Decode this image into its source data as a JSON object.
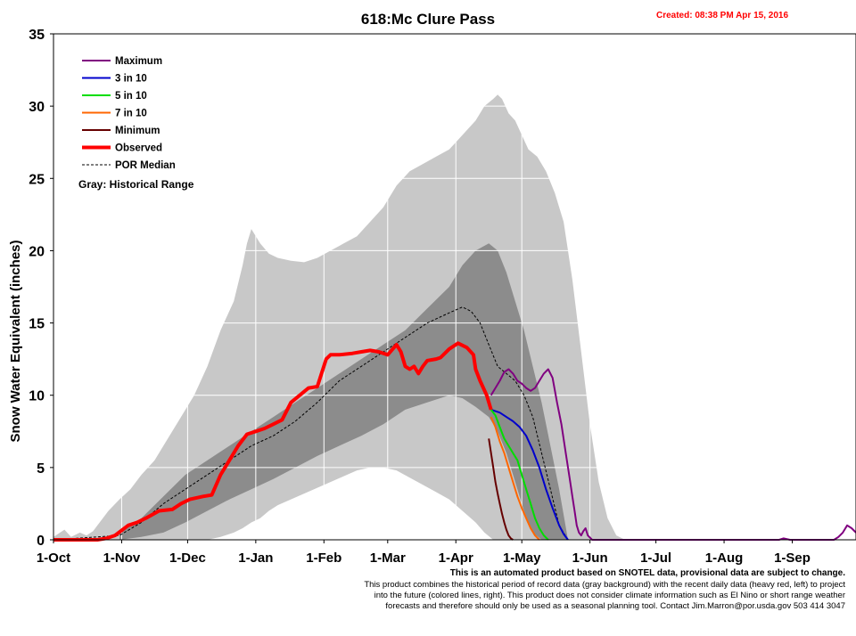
{
  "chart_data": {
    "type": "line",
    "title": "618:Mc Clure Pass",
    "created": "Created: 08:38 PM Apr 15, 2016",
    "ylabel": "Snow Water Equivalent (inches)",
    "xlabel": "",
    "ylim": [
      0,
      35
    ],
    "yticks": [
      0,
      5,
      10,
      15,
      20,
      25,
      30,
      35
    ],
    "xlim": [
      0,
      365
    ],
    "xticks": [
      {
        "day": 0,
        "label": "1-Oct"
      },
      {
        "day": 31,
        "label": "1-Nov"
      },
      {
        "day": 61,
        "label": "1-Dec"
      },
      {
        "day": 92,
        "label": "1-Jan"
      },
      {
        "day": 123,
        "label": "1-Feb"
      },
      {
        "day": 152,
        "label": "1-Mar"
      },
      {
        "day": 183,
        "label": "1-Apr"
      },
      {
        "day": 213,
        "label": "1-May"
      },
      {
        "day": 244,
        "label": "1-Jun"
      },
      {
        "day": 274,
        "label": "1-Jul"
      },
      {
        "day": 305,
        "label": "1-Aug"
      },
      {
        "day": 336,
        "label": "1-Sep"
      }
    ],
    "grid": true,
    "legend_position": "top-left",
    "legend": {
      "entries": [
        {
          "name": "Maximum",
          "color": "#800080",
          "style": "solid"
        },
        {
          "name": "3 in 10",
          "color": "#0000cc",
          "style": "solid"
        },
        {
          "name": "5 in 10",
          "color": "#00dd00",
          "style": "solid"
        },
        {
          "name": "7 in 10",
          "color": "#ff6600",
          "style": "solid"
        },
        {
          "name": "Minimum",
          "color": "#660000",
          "style": "solid"
        },
        {
          "name": "Observed",
          "color": "#ff0000",
          "style": "heavy"
        },
        {
          "name": "POR Median",
          "color": "#000000",
          "style": "dashed"
        }
      ],
      "note": "Gray: Historical Range"
    },
    "footer": {
      "line1": "This is an automated product based on SNOTEL data, provisional data are subject to change.",
      "line2": "This product combines the historical period of record data (gray background) with the recent daily data (heavy red, left) to project",
      "line3": "into the future (colored lines, right). This product does not consider climate information such as El Nino or short range weather",
      "line4": "forecasts and therefore should only be used as a seasonal planning tool. Contact Jim.Marron@por.usda.gov 503 414 3047"
    },
    "range_outer": {
      "x": [
        0,
        5,
        8,
        12,
        15,
        18,
        20,
        25,
        30,
        35,
        40,
        46,
        52,
        58,
        64,
        70,
        76,
        82,
        86,
        88,
        90,
        94,
        98,
        102,
        108,
        114,
        120,
        126,
        132,
        138,
        144,
        150,
        156,
        162,
        168,
        174,
        180,
        186,
        192,
        196,
        200,
        202,
        204,
        207,
        210,
        213,
        216,
        220,
        224,
        228,
        232,
        236,
        240,
        244,
        248,
        252,
        256,
        260
      ],
      "hi": [
        0.2,
        0.7,
        0.2,
        0.5,
        0.3,
        0.6,
        1.0,
        2.0,
        2.8,
        3.5,
        4.5,
        5.5,
        7.0,
        8.5,
        10.0,
        12.0,
        14.5,
        16.5,
        19.0,
        20.5,
        21.5,
        20.5,
        19.8,
        19.5,
        19.3,
        19.2,
        19.5,
        20.0,
        20.5,
        21.0,
        22.0,
        23.0,
        24.5,
        25.5,
        26.0,
        26.5,
        27.0,
        28.0,
        29.0,
        30.0,
        30.5,
        30.8,
        30.5,
        29.5,
        29.0,
        28.0,
        27.0,
        26.5,
        25.5,
        24.0,
        22.0,
        18.0,
        13.0,
        8.0,
        4.0,
        1.5,
        0.3,
        0
      ],
      "lo": [
        0,
        0,
        0,
        0,
        0,
        0,
        0,
        0,
        0,
        0,
        0,
        0,
        0,
        0,
        0,
        0,
        0.2,
        0.5,
        0.8,
        1.0,
        1.2,
        1.5,
        2.0,
        2.4,
        2.8,
        3.2,
        3.6,
        4.0,
        4.4,
        4.8,
        5.0,
        5.0,
        4.8,
        4.3,
        3.8,
        3.3,
        2.8,
        2.0,
        1.2,
        0.5,
        0,
        0,
        0,
        0,
        0,
        0,
        0,
        0,
        0,
        0,
        0,
        0,
        0,
        0,
        0,
        0,
        0,
        0
      ]
    },
    "range_inner": {
      "x": [
        30,
        40,
        50,
        60,
        70,
        80,
        90,
        100,
        110,
        120,
        130,
        140,
        150,
        160,
        170,
        180,
        186,
        192,
        198,
        202,
        206,
        210,
        214,
        218,
        222,
        226,
        230,
        234
      ],
      "hi": [
        0.5,
        1.5,
        3.0,
        4.5,
        5.5,
        6.5,
        7.5,
        8.5,
        9.5,
        10.5,
        11.5,
        12.5,
        13.5,
        14.5,
        16.0,
        17.5,
        19.0,
        20.0,
        20.5,
        20.0,
        18.5,
        16.5,
        14.5,
        12.0,
        9.5,
        6.5,
        3.5,
        0
      ],
      "lo": [
        0,
        0.2,
        0.5,
        1.2,
        2.0,
        2.8,
        3.5,
        4.2,
        5.0,
        5.8,
        6.5,
        7.2,
        8.0,
        9.0,
        9.5,
        10.0,
        9.8,
        9.2,
        8.5,
        7.5,
        6.0,
        4.0,
        2.0,
        0.5,
        0,
        0,
        0,
        0
      ]
    },
    "series": [
      {
        "name": "POR Median",
        "color": "#000000",
        "x": [
          0,
          30,
          40,
          50,
          60,
          70,
          80,
          90,
          100,
          110,
          120,
          130,
          140,
          150,
          160,
          170,
          180,
          186,
          190,
          194,
          198,
          202,
          206,
          210,
          214,
          218,
          222,
          226,
          230,
          234
        ],
        "y": [
          0,
          0.3,
          1.2,
          2.5,
          3.5,
          4.5,
          5.5,
          6.5,
          7.2,
          8.2,
          9.5,
          11.0,
          12.0,
          13.0,
          14.0,
          15.0,
          15.7,
          16.1,
          15.8,
          15.0,
          13.5,
          12.0,
          11.5,
          11.0,
          10.0,
          8.5,
          6.0,
          3.5,
          1.0,
          0
        ]
      },
      {
        "name": "Observed",
        "color": "#ff0000",
        "x": [
          0,
          20,
          24,
          28,
          34,
          38,
          42,
          48,
          54,
          58,
          62,
          68,
          72,
          76,
          80,
          84,
          88,
          92,
          96,
          100,
          104,
          108,
          112,
          116,
          120,
          124,
          126,
          130,
          136,
          140,
          144,
          148,
          152,
          156,
          158,
          160,
          162,
          164,
          166,
          168,
          170,
          174,
          176,
          180,
          184,
          188,
          191,
          192,
          194,
          197,
          199
        ],
        "y": [
          0,
          0,
          0.1,
          0.3,
          1.0,
          1.2,
          1.5,
          2.0,
          2.1,
          2.5,
          2.8,
          3.0,
          3.1,
          4.5,
          5.5,
          6.5,
          7.3,
          7.5,
          7.7,
          8.0,
          8.3,
          9.5,
          10.0,
          10.5,
          10.6,
          12.5,
          12.8,
          12.8,
          12.9,
          13.0,
          13.1,
          13.0,
          12.8,
          13.5,
          13.0,
          12.0,
          11.8,
          12.0,
          11.5,
          12.0,
          12.4,
          12.5,
          12.6,
          13.2,
          13.6,
          13.3,
          12.8,
          11.8,
          11.0,
          10.0,
          9.0
        ]
      },
      {
        "name": "Maximum",
        "color": "#800080",
        "x": [
          199,
          201,
          203,
          205,
          207,
          209,
          211,
          213,
          215,
          217,
          219,
          221,
          223,
          225,
          227,
          229,
          231,
          233,
          235,
          236,
          237,
          238,
          239,
          240,
          241,
          242,
          243,
          245,
          330,
          332,
          335,
          355,
          357,
          359,
          361,
          363,
          365
        ],
        "y": [
          10.0,
          10.5,
          11.0,
          11.6,
          11.8,
          11.5,
          11.0,
          10.8,
          10.5,
          10.3,
          10.5,
          11.0,
          11.5,
          11.8,
          11.2,
          9.5,
          8.0,
          6.0,
          4.0,
          3.0,
          2.0,
          1.0,
          0.5,
          0.3,
          0.6,
          0.8,
          0.3,
          0,
          0,
          0.1,
          0,
          0,
          0.2,
          0.5,
          1.0,
          0.8,
          0.5
        ]
      },
      {
        "name": "3 in 10",
        "color": "#0000cc",
        "x": [
          199,
          203,
          206,
          209,
          212,
          215,
          218,
          221,
          224,
          227,
          230,
          232,
          234
        ],
        "y": [
          9.0,
          8.8,
          8.5,
          8.2,
          7.8,
          7.2,
          6.2,
          5.0,
          3.5,
          2.2,
          1.0,
          0.4,
          0
        ]
      },
      {
        "name": "5 in 10",
        "color": "#00dd00",
        "x": [
          199,
          201,
          203,
          205,
          207,
          209,
          211,
          213,
          215,
          217,
          219,
          221,
          223,
          225
        ],
        "y": [
          9.0,
          8.6,
          7.8,
          7.0,
          6.5,
          6.0,
          5.5,
          4.5,
          3.5,
          2.5,
          1.5,
          0.8,
          0.3,
          0
        ]
      },
      {
        "name": "7 in 10",
        "color": "#ff6600",
        "x": [
          199,
          201,
          203,
          205,
          207,
          209,
          211,
          213,
          215,
          217,
          219,
          221
        ],
        "y": [
          8.5,
          7.8,
          6.8,
          6.0,
          5.0,
          4.0,
          3.0,
          2.2,
          1.5,
          0.8,
          0.3,
          0
        ]
      },
      {
        "name": "Minimum",
        "color": "#660000",
        "x": [
          198,
          199,
          200,
          201,
          202,
          203,
          204,
          205,
          206,
          207,
          208,
          209
        ],
        "y": [
          7.0,
          6.0,
          5.0,
          4.0,
          3.2,
          2.5,
          1.8,
          1.2,
          0.7,
          0.3,
          0.1,
          0
        ]
      }
    ]
  }
}
